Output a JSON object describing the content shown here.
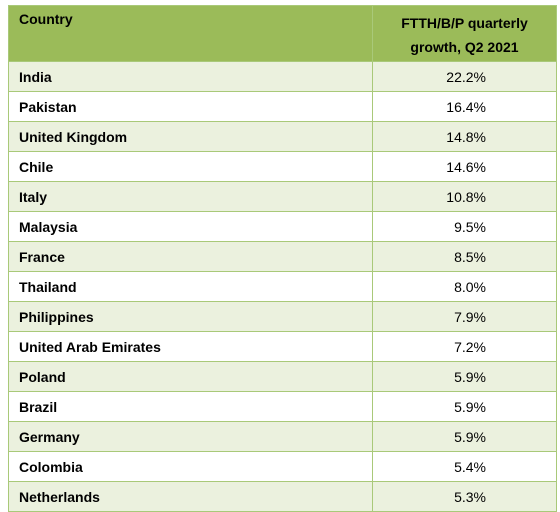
{
  "chart_data": {
    "type": "table",
    "columns": [
      "Country",
      "FTTH/B/P quarterly growth, Q2 2021"
    ],
    "header": {
      "country": "Country",
      "value_line1": "FTTH/B/P quarterly",
      "value_line2": "growth, Q2 2021"
    },
    "rows": [
      {
        "country": "India",
        "value": "22.2%"
      },
      {
        "country": "Pakistan",
        "value": "16.4%"
      },
      {
        "country": "United Kingdom",
        "value": "14.8%"
      },
      {
        "country": "Chile",
        "value": "14.6%"
      },
      {
        "country": "Italy",
        "value": "10.8%"
      },
      {
        "country": "Malaysia",
        "value": "9.5%"
      },
      {
        "country": "France",
        "value": "8.5%"
      },
      {
        "country": "Thailand",
        "value": "8.0%"
      },
      {
        "country": "Philippines",
        "value": "7.9%"
      },
      {
        "country": "United Arab Emirates",
        "value": "7.2%"
      },
      {
        "country": "Poland",
        "value": "5.9%"
      },
      {
        "country": "Brazil",
        "value": "5.9%"
      },
      {
        "country": "Germany",
        "value": "5.9%"
      },
      {
        "country": "Colombia",
        "value": "5.4%"
      },
      {
        "country": "Netherlands",
        "value": "5.3%"
      }
    ]
  },
  "colors": {
    "header_bg": "#9bbb59",
    "row_alt_bg": "#ebf1de",
    "row_bg": "#ffffff",
    "border": "#a9c979"
  }
}
